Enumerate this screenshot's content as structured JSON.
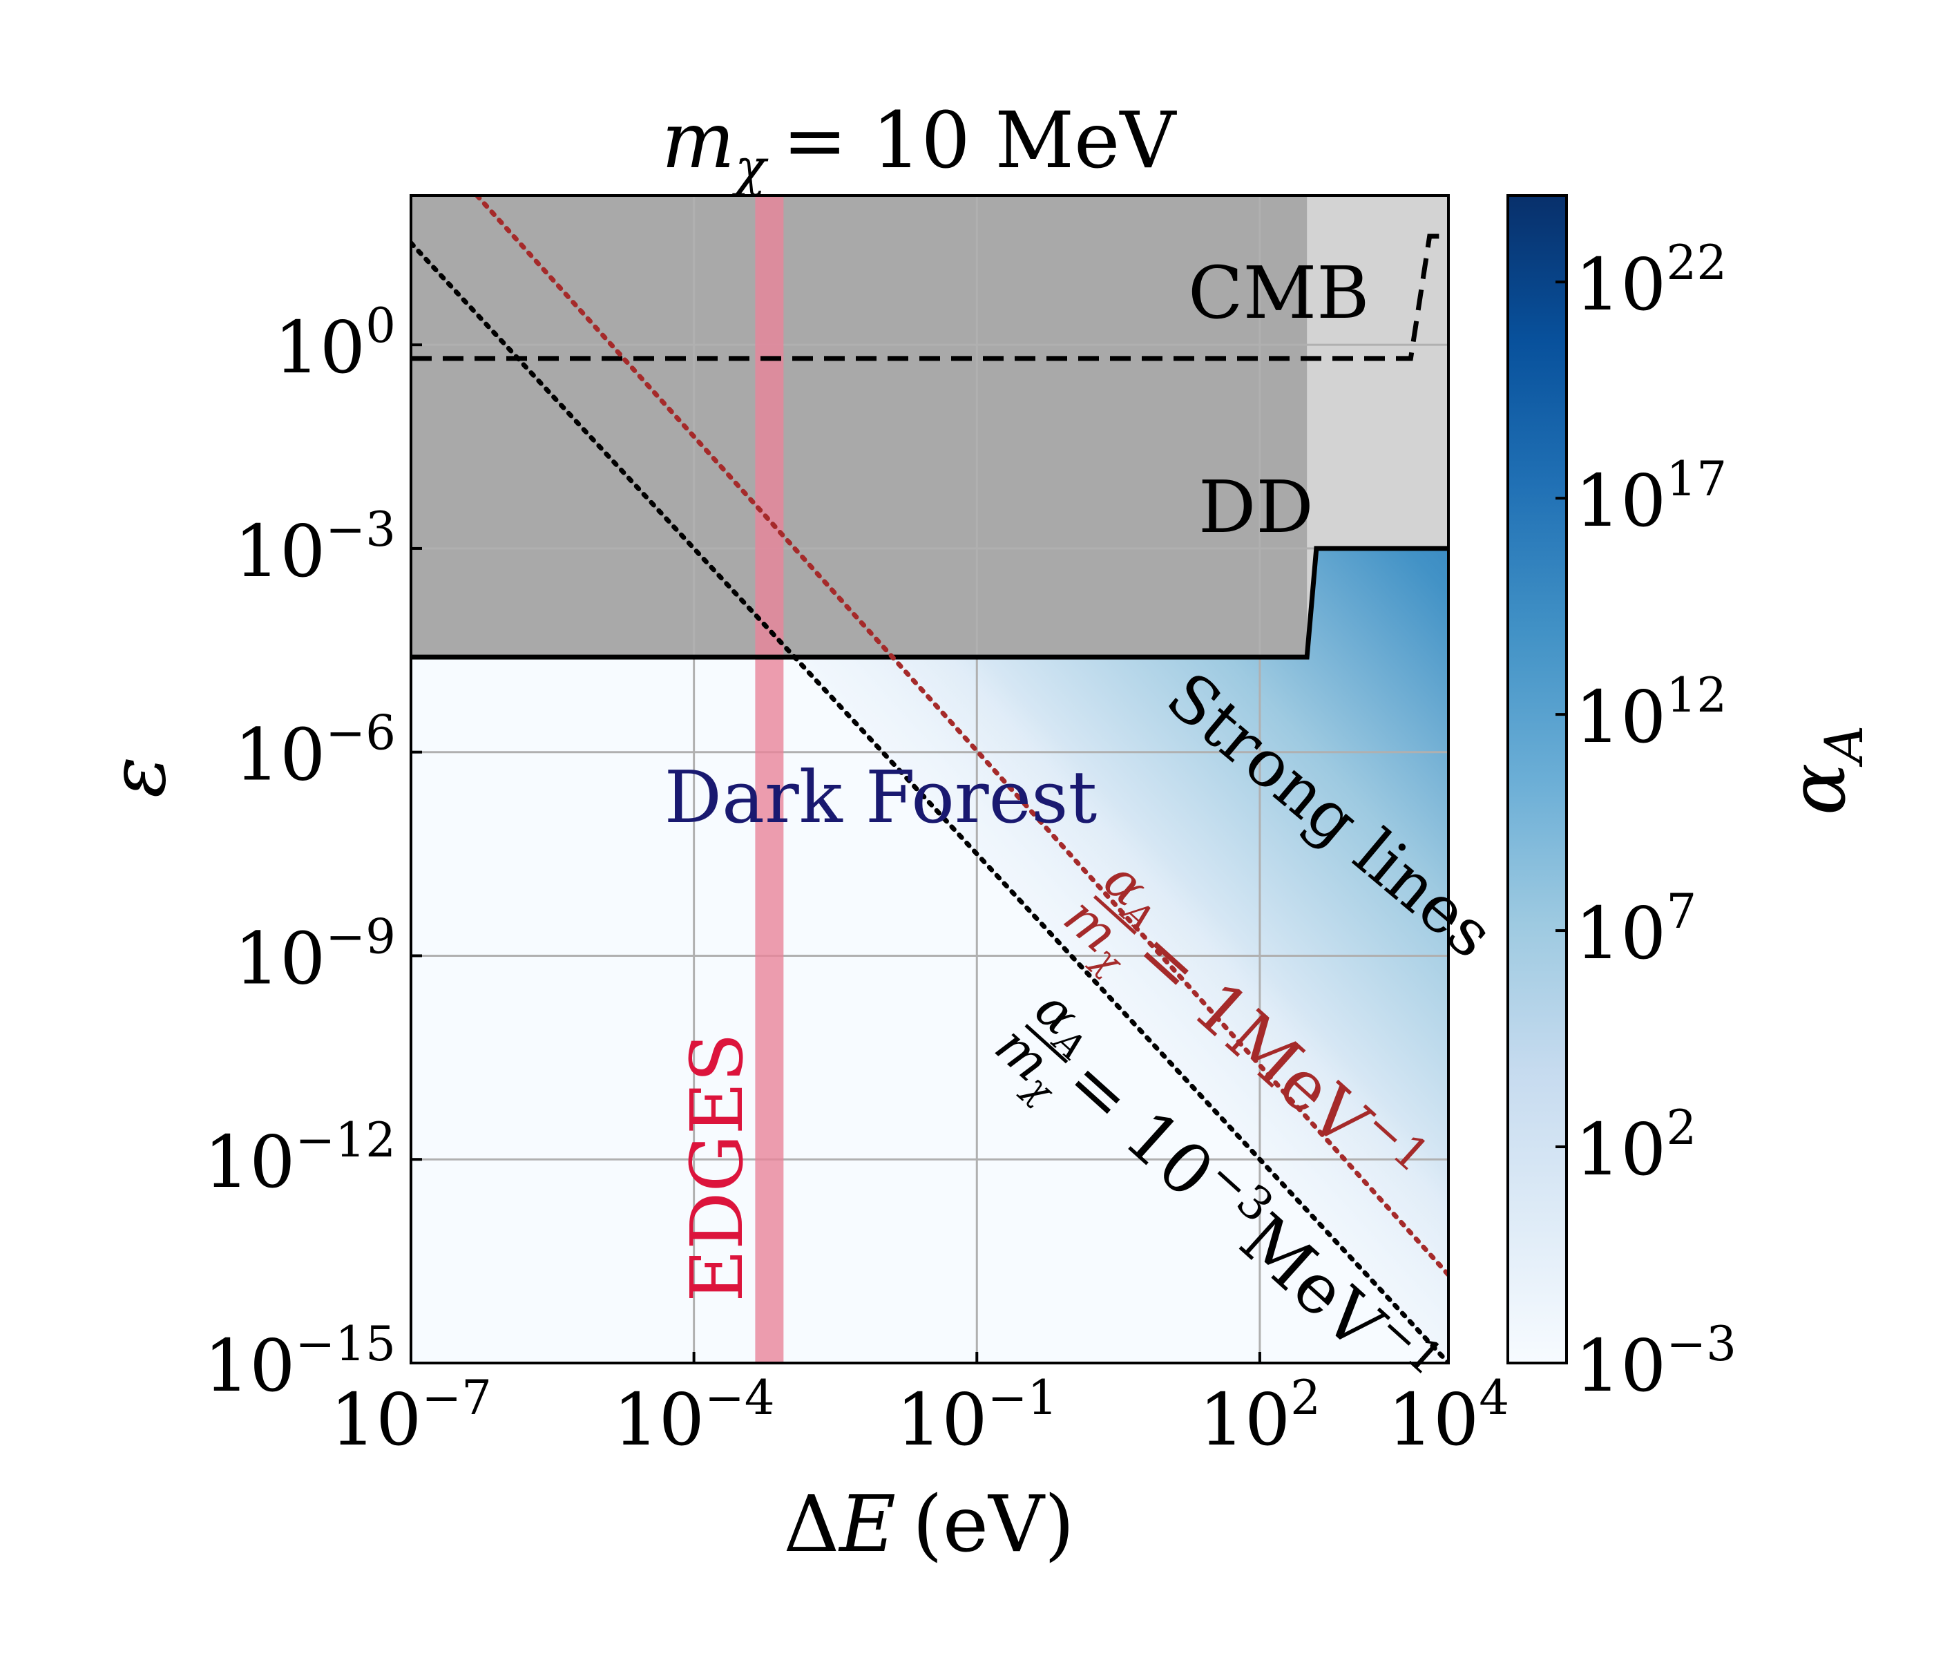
{
  "chart_data": {
    "type": "heatmap",
    "title_var": "m",
    "title_sub": "χ",
    "title_rest": "= 10 MeV",
    "xlabel_prefix": "Δ",
    "xlabel_var": "E",
    "xlabel_unit": "(eV)",
    "ylabel": "ε",
    "xscale": "log",
    "yscale": "log",
    "xlim_exp": [
      -7,
      4
    ],
    "ylim_exp": [
      -15,
      2.2
    ],
    "xticks": [
      {
        "base": "10",
        "exp": "−7",
        "e": -7
      },
      {
        "base": "10",
        "exp": "−4",
        "e": -4
      },
      {
        "base": "10",
        "exp": "−1",
        "e": -1
      },
      {
        "base": "10",
        "exp": "2",
        "e": 2
      },
      {
        "base": "10",
        "exp": "4",
        "e": 4
      }
    ],
    "yticks": [
      {
        "base": "10",
        "exp": "0",
        "e": 0
      },
      {
        "base": "10",
        "exp": "−3",
        "e": -3
      },
      {
        "base": "10",
        "exp": "−6",
        "e": -6
      },
      {
        "base": "10",
        "exp": "−9",
        "e": -9
      },
      {
        "base": "10",
        "exp": "−12",
        "e": -12
      },
      {
        "base": "10",
        "exp": "−15",
        "e": -15
      }
    ],
    "xgrid_exp": [
      -4,
      -1,
      2
    ],
    "ygrid_exp": [
      0,
      -3,
      -6,
      -9,
      -12
    ],
    "grid": true,
    "colorbar": {
      "label_var": "α",
      "label_sub": "A",
      "scale": "log",
      "range_exp": [
        -3,
        24
      ],
      "cmap": [
        "#f7fbff",
        "#deebf7",
        "#c6dbef",
        "#9ecae1",
        "#6baed6",
        "#4292c6",
        "#2171b5",
        "#08519c",
        "#08306b"
      ],
      "ticks": [
        {
          "base": "10",
          "exp": "−3",
          "e": -3
        },
        {
          "base": "10",
          "exp": "2",
          "e": 2
        },
        {
          "base": "10",
          "exp": "7",
          "e": 7
        },
        {
          "base": "10",
          "exp": "12",
          "e": 12
        },
        {
          "base": "10",
          "exp": "17",
          "e": 17
        },
        {
          "base": "10",
          "exp": "22",
          "e": 22
        }
      ]
    },
    "regions": {
      "cmb_boundary": [
        [
          -7,
          -0.2
        ],
        [
          3.6,
          -0.2
        ],
        [
          3.8,
          1.6
        ],
        [
          4,
          1.6
        ]
      ],
      "dd_boundary": [
        [
          -7,
          -4.6
        ],
        [
          2.5,
          -4.6
        ],
        [
          2.6,
          -3.0
        ],
        [
          4,
          -3.0
        ]
      ],
      "dark_shade_x_max_exp": 2.5,
      "dark_shade_color": "#a9a9a9",
      "light_shade_color": "#d3d3d3"
    },
    "edges_band_exp": [
      -3.35,
      -3.05
    ],
    "edges_color": "#e8849a",
    "lines": [
      {
        "name": "ratio_1",
        "points": [
          [
            -6.3,
            2.2
          ],
          [
            4,
            -13.7
          ]
        ],
        "color": "#a52a2a",
        "style": "dotted"
      },
      {
        "name": "ratio_1e-3",
        "points": [
          [
            -7,
            1.5
          ],
          [
            4,
            -15
          ]
        ],
        "color": "#000000",
        "style": "dotted"
      }
    ],
    "annotations": {
      "cmb": "CMB",
      "dd": "DD",
      "strong_lines": "Strong lines",
      "dark_forest": "Dark Forest",
      "edges": "EDGES",
      "ratio_num": "α",
      "ratio_num_sub": "A",
      "ratio_den": "m",
      "ratio_den_sub": "χ",
      "ratio1_rhs": "= 1MeV",
      "ratio1_exp": "−1",
      "ratio2_rhs": "= 10",
      "ratio2_exp": "−3",
      "ratio2_unit": "MeV",
      "ratio2_unit_exp": "−1"
    }
  }
}
